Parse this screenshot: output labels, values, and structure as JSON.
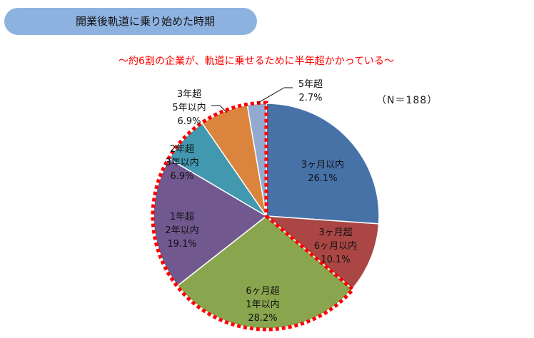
{
  "header": {
    "title": "開業後軌道に乗り始めた時期"
  },
  "subtitle": "～約6割の企業が、軌道に乗せるために半年超かかっている～",
  "sample_size": "（N＝188）",
  "chart_data": {
    "type": "pie",
    "title": "開業後軌道に乗り始めた時期",
    "start": "12 o'clock, clockwise",
    "slices": [
      {
        "label": [
          "3ヶ月以内"
        ],
        "value": 26.1,
        "value_label": "26.1%",
        "color": "#4672a8"
      },
      {
        "label": [
          "3ヶ月超",
          "6ヶ月以内"
        ],
        "value": 10.1,
        "value_label": "10.1%",
        "color": "#aa4744"
      },
      {
        "label": [
          "6ヶ月超",
          "1年以内"
        ],
        "value": 28.2,
        "value_label": "28.2%",
        "color": "#89a54e"
      },
      {
        "label": [
          "1年超",
          "2年以内"
        ],
        "value": 19.1,
        "value_label": "19.1%",
        "color": "#71588f"
      },
      {
        "label": [
          "2年超",
          "3年以内"
        ],
        "value": 6.9,
        "value_label": "6.9%",
        "color": "#4198af"
      },
      {
        "label": [
          "3年超",
          "5年以内"
        ],
        "value": 6.9,
        "value_label": "6.9%",
        "color": "#db843d"
      },
      {
        "label": [
          "5年超"
        ],
        "value": 2.7,
        "value_label": "2.7%",
        "color": "#93a9cf"
      }
    ],
    "highlight": {
      "description_color": "#ff0000",
      "slices_from": 2,
      "slices_to": 6
    }
  }
}
